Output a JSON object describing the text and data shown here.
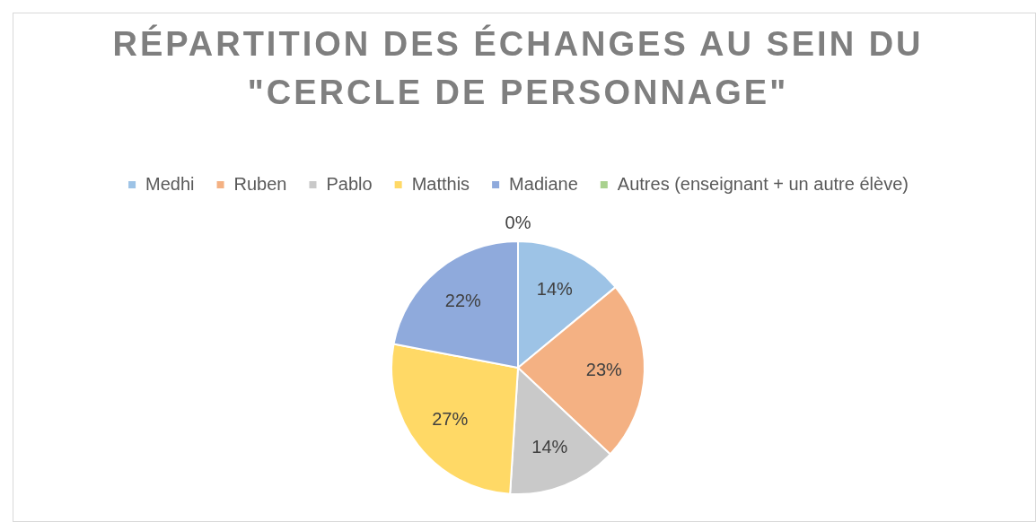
{
  "chart_data": {
    "type": "pie",
    "title": "RÉPARTITION DES ÉCHANGES AU SEIN DU \"CERCLE DE PERSONNAGE\"",
    "categories": [
      "Medhi",
      "Ruben",
      "Pablo",
      "Matthis",
      "Madiane",
      "Autres (enseignant + un autre élève)"
    ],
    "values": [
      14,
      23,
      14,
      27,
      22,
      0
    ],
    "colors": [
      "#9dc3e6",
      "#f4b183",
      "#c9c9c9",
      "#ffd966",
      "#8faadc",
      "#a9d18e"
    ],
    "value_labels": [
      "14%",
      "23%",
      "14%",
      "27%",
      "22%",
      "0%"
    ],
    "legend": "top"
  }
}
